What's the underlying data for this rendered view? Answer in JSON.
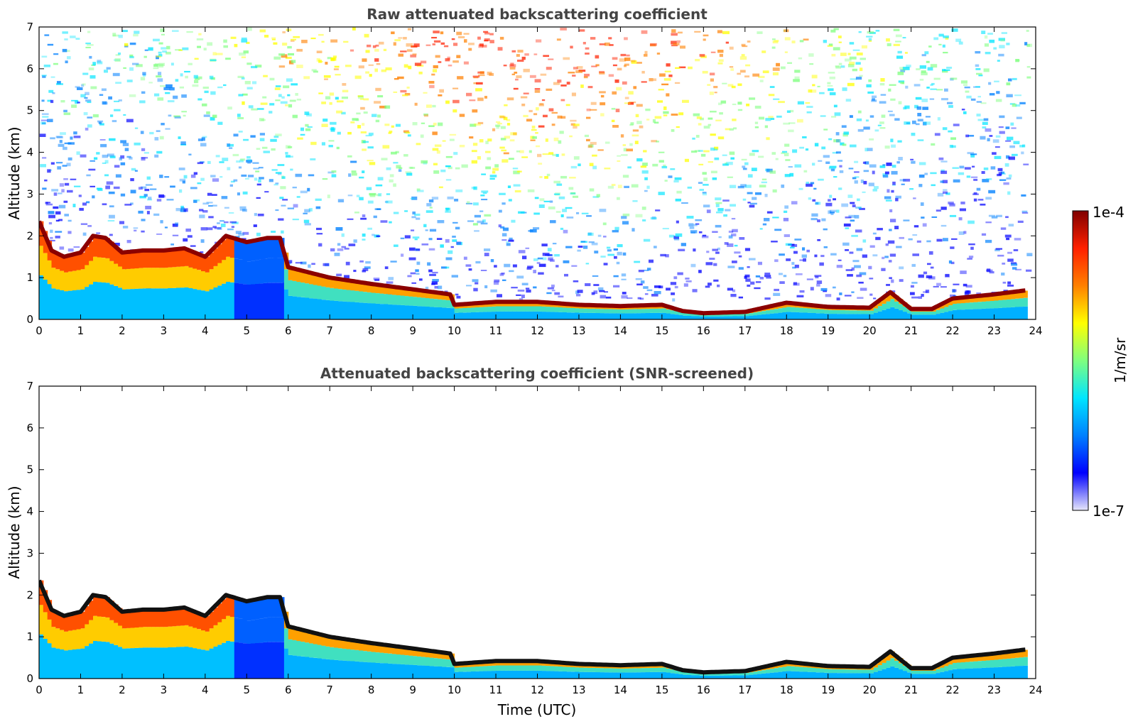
{
  "chart_data": [
    {
      "type": "heatmap",
      "title": "Raw attenuated backscattering coefficient",
      "xlabel": "",
      "ylabel": "Altitude (km)",
      "xlim": [
        0,
        24
      ],
      "ylim": [
        0,
        7
      ],
      "x_ticks": [
        0,
        1,
        2,
        3,
        4,
        5,
        6,
        7,
        8,
        9,
        10,
        11,
        12,
        13,
        14,
        15,
        16,
        17,
        18,
        19,
        20,
        21,
        22,
        23,
        24
      ],
      "y_ticks": [
        0,
        1,
        2,
        3,
        4,
        5,
        6,
        7
      ],
      "grid": false,
      "noise_background": true,
      "cloud_layer_altitude_km": {
        "time_utc": [
          0.0,
          0.3,
          0.6,
          1.0,
          1.3,
          1.6,
          2.0,
          2.5,
          3.0,
          3.5,
          4.0,
          4.5,
          5.0,
          5.5,
          5.8,
          6.0,
          7.0,
          8.0,
          9.0,
          9.9,
          10.0,
          11.0,
          12.0,
          13.0,
          14.0,
          15.0,
          15.5,
          16.0,
          17.0,
          18.0,
          19.0,
          20.0,
          20.5,
          21.0,
          21.5,
          22.0,
          22.5,
          23.0,
          23.8
        ],
        "altitude": [
          2.35,
          1.65,
          1.5,
          1.6,
          2.0,
          1.95,
          1.6,
          1.65,
          1.65,
          1.7,
          1.5,
          2.0,
          1.85,
          1.95,
          1.95,
          1.25,
          1.0,
          0.85,
          0.72,
          0.6,
          0.35,
          0.42,
          0.42,
          0.35,
          0.32,
          0.35,
          0.2,
          0.15,
          0.18,
          0.4,
          0.3,
          0.28,
          0.65,
          0.25,
          0.25,
          0.5,
          0.55,
          0.6,
          0.7
        ]
      }
    },
    {
      "type": "heatmap",
      "title": "Attenuated backscattering coefficient (SNR-screened)",
      "xlabel": "Time (UTC)",
      "ylabel": "Altitude (km)",
      "xlim": [
        0,
        24
      ],
      "ylim": [
        0,
        7
      ],
      "x_ticks": [
        0,
        1,
        2,
        3,
        4,
        5,
        6,
        7,
        8,
        9,
        10,
        11,
        12,
        13,
        14,
        15,
        16,
        17,
        18,
        19,
        20,
        21,
        22,
        23,
        24
      ],
      "y_ticks": [
        0,
        1,
        2,
        3,
        4,
        5,
        6,
        7
      ],
      "grid": false,
      "noise_background": false,
      "cloud_layer_altitude_km": {
        "time_utc": [
          0.0,
          0.3,
          0.6,
          1.0,
          1.3,
          1.6,
          2.0,
          2.5,
          3.0,
          3.5,
          4.0,
          4.5,
          5.0,
          5.5,
          5.8,
          6.0,
          7.0,
          8.0,
          9.0,
          9.9,
          10.0,
          11.0,
          12.0,
          13.0,
          14.0,
          15.0,
          15.5,
          16.0,
          17.0,
          18.0,
          19.0,
          20.0,
          20.5,
          21.0,
          21.5,
          22.0,
          22.5,
          23.0,
          23.8
        ],
        "altitude": [
          2.35,
          1.65,
          1.5,
          1.6,
          2.0,
          1.95,
          1.6,
          1.65,
          1.65,
          1.7,
          1.5,
          2.0,
          1.85,
          1.95,
          1.95,
          1.25,
          1.0,
          0.85,
          0.72,
          0.6,
          0.35,
          0.42,
          0.42,
          0.35,
          0.32,
          0.35,
          0.2,
          0.15,
          0.18,
          0.4,
          0.3,
          0.28,
          0.65,
          0.25,
          0.25,
          0.5,
          0.55,
          0.6,
          0.7
        ]
      }
    }
  ],
  "colorbar": {
    "label": "1/m/sr",
    "min_label": "1e-7",
    "max_label": "1e-4",
    "scale": "log",
    "colormap": [
      "#e6e6fa",
      "#0000ff",
      "#0080ff",
      "#00e5ff",
      "#7fff7f",
      "#ffff00",
      "#ff8000",
      "#ff2000",
      "#800000"
    ]
  }
}
